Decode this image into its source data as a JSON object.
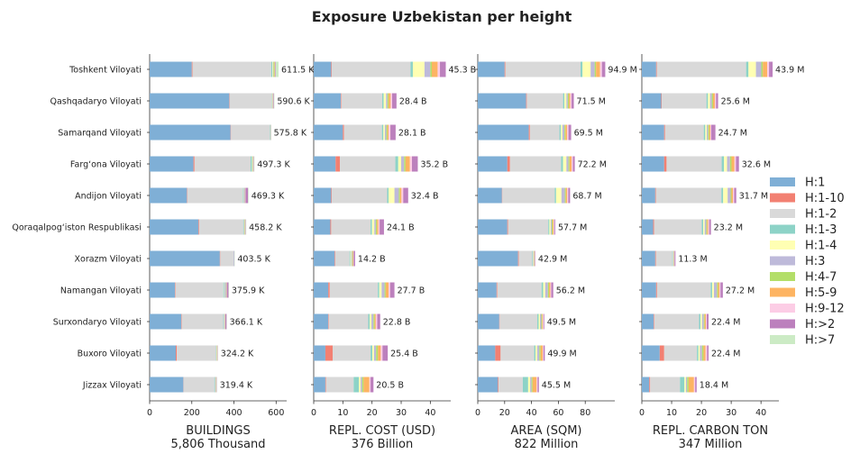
{
  "title": "Exposure Uzbekistan per height",
  "chart_data": {
    "type": "bar",
    "orientation": "horizontal",
    "stacked": true,
    "title": "Exposure Uzbekistan per height",
    "categories": [
      "Toshkent Viloyati",
      "Qashqadaryo Viloyati",
      "Samarqand Viloyati",
      "Farg‘ona Viloyati",
      "Andijon Viloyati",
      "Qoraqalpog‘iston Respublikasi",
      "Xorazm Viloyati",
      "Namangan Viloyati",
      "Surxondaryo Viloyati",
      "Buxoro Viloyati",
      "Jizzax Viloyati"
    ],
    "legend": {
      "placement": "right",
      "entries": [
        {
          "name": "H:1",
          "color": "#7fafd6"
        },
        {
          "name": "H:1-10",
          "color": "#f28072"
        },
        {
          "name": "H:1-2",
          "color": "#d9d9d9"
        },
        {
          "name": "H:1-3",
          "color": "#8dd3c7"
        },
        {
          "name": "H:1-4",
          "color": "#ffffb3"
        },
        {
          "name": "H:3",
          "color": "#bebada"
        },
        {
          "name": "H:4-7",
          "color": "#b3de69"
        },
        {
          "name": "H:5-9",
          "color": "#fdb462"
        },
        {
          "name": "H:9-12",
          "color": "#fccde5"
        },
        {
          "name": "H:>2",
          "color": "#bc80bd"
        },
        {
          "name": "H:>7",
          "color": "#ccebc5"
        }
      ]
    },
    "panels": [
      {
        "xlabel": "BUILDINGS",
        "total": "5,806 Thousand",
        "xlim": [
          0,
          650
        ],
        "ticks": [
          0,
          200,
          400,
          600
        ],
        "tick_labels": [
          "0",
          "200",
          "400",
          "600"
        ],
        "grid": false,
        "totals": [
          "611.5 K",
          "590.6 K",
          "575.8 K",
          "497.3 K",
          "469.3 K",
          "458.2 K",
          "403.5 K",
          "375.9 K",
          "366.1 K",
          "324.2 K",
          "319.4 K"
        ],
        "values": {
          "H:1": [
            200,
            378,
            384,
            208,
            177,
            232,
            333,
            120,
            150,
            124,
            160
          ],
          "H:1-10": [
            3,
            2,
            2,
            5,
            2,
            3,
            2,
            2,
            2,
            5,
            1
          ],
          "H:1-2": [
            374,
            198,
            183,
            266,
            262,
            209,
            64,
            228,
            197,
            186,
            146
          ],
          "H:1-3": [
            5,
            2,
            2,
            6,
            3,
            3,
            1,
            4,
            3,
            2,
            3
          ],
          "H:1-4": [
            3,
            1,
            1,
            2,
            2,
            1,
            0,
            2,
            1,
            1,
            1
          ],
          "H:3": [
            2,
            2,
            1,
            2,
            6,
            2,
            1,
            6,
            3,
            1,
            2
          ],
          "H:4-7": [
            5,
            1,
            1,
            2,
            1,
            2,
            0,
            2,
            1,
            1,
            1
          ],
          "H:5-9": [
            2,
            1,
            0,
            1,
            1,
            1,
            0,
            1,
            1,
            1,
            1
          ],
          "H:9-12": [
            1,
            1,
            0,
            1,
            1,
            1,
            0,
            1,
            1,
            1,
            1
          ],
          "H:>2": [
            3,
            3,
            1,
            2,
            12,
            2,
            1,
            8,
            6,
            1,
            2
          ],
          "H:>7": [
            13.5,
            2.6,
            0.8,
            2.3,
            2.3,
            2.2,
            1.5,
            1.9,
            1.1,
            1.2,
            1.4
          ]
        }
      },
      {
        "xlabel": "REPL. COST (USD)",
        "total": "376 Billion",
        "xlim": [
          0,
          47
        ],
        "ticks": [
          0,
          10,
          20,
          30,
          40
        ],
        "tick_labels": [
          "0",
          "10",
          "20",
          "30",
          "40"
        ],
        "grid": false,
        "totals": [
          "45.3 B",
          "28.4 B",
          "28.1 B",
          "35.2 B",
          "32.4 B",
          "24.1 B",
          "14.2 B",
          "27.7 B",
          "22.8 B",
          "25.4 B",
          "20.5 B"
        ],
        "values": {
          "H:1": [
            6.0,
            9.3,
            10.0,
            7.5,
            6.0,
            5.7,
            7.2,
            5.0,
            5.0,
            4.0,
            4.0
          ],
          "H:1-10": [
            0.2,
            0.2,
            0.4,
            1.5,
            0.2,
            0.3,
            0.2,
            0.5,
            0.2,
            2.5,
            0.2
          ],
          "H:1-2": [
            27.0,
            14.0,
            13.0,
            19.0,
            19.0,
            13.5,
            4.9,
            16.5,
            13.5,
            13.0,
            9.5
          ],
          "H:1-3": [
            0.8,
            0.5,
            0.5,
            1.0,
            0.5,
            0.5,
            0.3,
            0.5,
            0.5,
            0.6,
            1.8
          ],
          "H:1-4": [
            4.0,
            0.8,
            0.5,
            1.0,
            2.0,
            0.8,
            0.3,
            0.8,
            0.6,
            0.6,
            0.6
          ],
          "H:3": [
            2.0,
            0.5,
            0.5,
            1.0,
            1.5,
            0.5,
            0.3,
            1.0,
            0.7,
            0.7,
            0.5
          ],
          "H:4-7": [
            0.5,
            0.4,
            0.4,
            0.5,
            0.4,
            0.4,
            0.2,
            0.4,
            0.4,
            0.6,
            0.5
          ],
          "H:5-9": [
            2.0,
            0.7,
            0.4,
            1.5,
            0.5,
            0.5,
            0.2,
            1.0,
            0.4,
            1.0,
            2.0
          ],
          "H:9-12": [
            0.8,
            0.5,
            0.6,
            0.7,
            0.6,
            0.4,
            0.1,
            0.5,
            0.5,
            0.6,
            0.4
          ],
          "H:>2": [
            2.0,
            1.5,
            1.8,
            2.0,
            1.7,
            1.5,
            0.5,
            1.5,
            1.0,
            1.8,
            1.0
          ],
          "H:>7": [
            0.0,
            0.0,
            0.0,
            0.0,
            0.0,
            0.0,
            0.0,
            0.0,
            0.0,
            0.0,
            0.0
          ]
        }
      },
      {
        "xlabel": "AREA (SQM)",
        "total": "822 Million",
        "xlim": [
          0,
          102
        ],
        "ticks": [
          0,
          20,
          40,
          60,
          80
        ],
        "tick_labels": [
          "0",
          "20",
          "40",
          "60",
          "80"
        ],
        "grid": false,
        "totals": [
          "94.9 M",
          "71.5 M",
          "69.5 M",
          "72.2 M",
          "68.7 M",
          "57.7 M",
          "42.9 M",
          "56.2 M",
          "49.5 M",
          "49.9 M",
          "45.5 M"
        ],
        "values": {
          "H:1": [
            20.0,
            36.0,
            38.0,
            22.0,
            18.0,
            22.0,
            30.0,
            14.0,
            16.0,
            13.0,
            15.0
          ],
          "H:1-10": [
            0.5,
            0.5,
            0.8,
            2.0,
            0.3,
            0.5,
            0.5,
            0.5,
            0.3,
            4.0,
            0.5
          ],
          "H:1-2": [
            56.0,
            27.0,
            22.0,
            38.0,
            39.0,
            30.0,
            10.0,
            33.0,
            28.0,
            25.0,
            18.0
          ],
          "H:1-3": [
            1.5,
            1.0,
            1.0,
            1.5,
            1.0,
            0.8,
            0.5,
            1.2,
            1.0,
            1.0,
            4.0
          ],
          "H:1-4": [
            6.0,
            1.5,
            1.2,
            2.5,
            4.0,
            1.0,
            0.3,
            1.5,
            1.0,
            1.3,
            1.5
          ],
          "H:3": [
            3.0,
            1.0,
            1.5,
            1.5,
            2.5,
            0.8,
            0.5,
            2.0,
            1.0,
            1.5,
            1.0
          ],
          "H:4-7": [
            1.0,
            0.8,
            0.8,
            0.8,
            0.8,
            0.6,
            0.3,
            0.8,
            0.6,
            1.0,
            0.8
          ],
          "H:5-9": [
            3.0,
            1.0,
            1.2,
            1.5,
            1.0,
            0.8,
            0.3,
            1.0,
            0.6,
            1.5,
            3.0
          ],
          "H:9-12": [
            1.4,
            1.0,
            1.0,
            1.0,
            0.8,
            0.6,
            0.2,
            0.7,
            0.5,
            0.6,
            0.7
          ],
          "H:>2": [
            2.5,
            1.7,
            2.0,
            1.4,
            1.3,
            0.6,
            0.3,
            1.5,
            0.5,
            1.0,
            1.0
          ],
          "H:>7": [
            0.0,
            0.0,
            0.0,
            0.0,
            0.0,
            0.0,
            0.0,
            0.0,
            0.0,
            0.0,
            0.0
          ]
        }
      },
      {
        "xlabel": "REPL. CARBON TON",
        "total": "347 Million",
        "xlim": [
          0,
          46
        ],
        "ticks": [
          0,
          10,
          20,
          30,
          40
        ],
        "tick_labels": [
          "0",
          "10",
          "20",
          "30",
          "40"
        ],
        "grid": false,
        "totals": [
          "43.9 M",
          "25.6 M",
          "24.7 M",
          "32.6 M",
          "31.7 M",
          "23.2 M",
          "11.3 M",
          "27.2 M",
          "22.4 M",
          "22.4 M",
          "18.4 M"
        ],
        "values": {
          "H:1": [
            4.8,
            6.5,
            7.5,
            7.5,
            4.5,
            3.8,
            4.5,
            4.8,
            4.0,
            6.0,
            2.5
          ],
          "H:1-10": [
            0.2,
            0.2,
            0.3,
            0.8,
            0.2,
            0.3,
            0.2,
            0.3,
            0.2,
            1.5,
            0.3
          ],
          "H:1-2": [
            30.0,
            15.0,
            13.0,
            18.5,
            22.0,
            16.0,
            5.5,
            18.0,
            15.0,
            11.0,
            10.0
          ],
          "H:1-3": [
            0.8,
            0.5,
            0.5,
            0.8,
            0.6,
            0.5,
            0.2,
            0.5,
            0.5,
            0.5,
            1.5
          ],
          "H:1-4": [
            2.5,
            0.7,
            0.5,
            1.0,
            1.5,
            0.5,
            0.1,
            0.6,
            0.5,
            0.5,
            0.5
          ],
          "H:3": [
            1.8,
            0.6,
            0.4,
            1.0,
            1.0,
            0.5,
            0.2,
            1.0,
            0.6,
            0.7,
            0.4
          ],
          "H:4-7": [
            0.5,
            0.4,
            0.4,
            0.5,
            0.3,
            0.3,
            0.1,
            0.4,
            0.3,
            0.5,
            0.5
          ],
          "H:5-9": [
            1.5,
            0.6,
            0.4,
            1.0,
            0.5,
            0.4,
            0.1,
            0.5,
            0.4,
            0.7,
            1.8
          ],
          "H:9-12": [
            0.6,
            0.4,
            0.3,
            0.5,
            0.4,
            0.3,
            0.1,
            0.3,
            0.3,
            0.5,
            0.4
          ],
          "H:>2": [
            1.2,
            0.7,
            1.4,
            1.0,
            0.7,
            0.6,
            0.3,
            0.8,
            0.6,
            0.5,
            0.5
          ],
          "H:>7": [
            0.0,
            0.0,
            0.0,
            0.0,
            0.0,
            0.0,
            0.0,
            0.0,
            0.0,
            0.0,
            0.0
          ]
        }
      }
    ]
  }
}
